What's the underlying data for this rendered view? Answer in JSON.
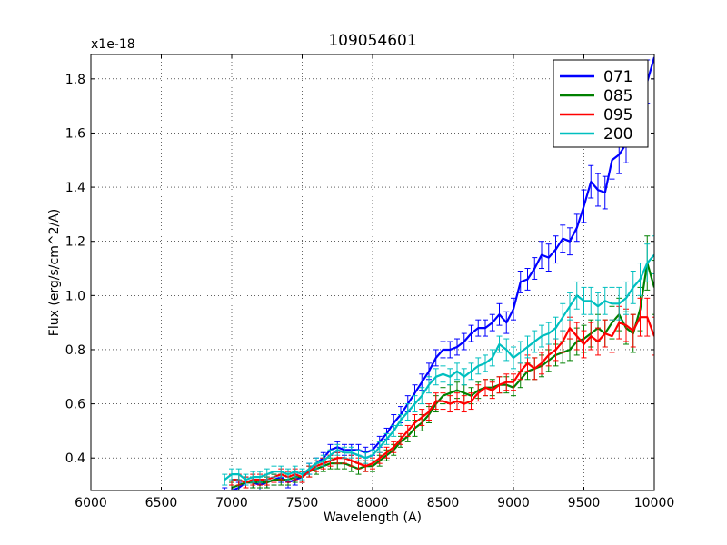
{
  "chart_data": {
    "type": "line",
    "title": "109054601",
    "xlabel": "Wavelength (A)",
    "ylabel": "Flux (erg/s/cm^2/A)",
    "y_offset_text": "x1e-18",
    "xlim": [
      6000,
      10000
    ],
    "ylim": [
      0.28,
      1.89
    ],
    "xticks": [
      6000,
      6500,
      7000,
      7500,
      8000,
      8500,
      9000,
      9500,
      10000
    ],
    "xtick_labels": [
      "6000",
      "6500",
      "7000",
      "7500",
      "8000",
      "8500",
      "9000",
      "9500",
      "10000"
    ],
    "yticks": [
      0.4,
      0.6,
      0.8,
      1.0,
      1.2,
      1.4,
      1.6,
      1.8
    ],
    "ytick_labels": [
      "0.4",
      "0.6",
      "0.8",
      "1.0",
      "1.2",
      "1.4",
      "1.6",
      "1.8"
    ],
    "grid": true,
    "legend_position": "top-right",
    "series": [
      {
        "name": "071",
        "color": "#0000ff",
        "x": [
          6950,
          7000,
          7050,
          7100,
          7150,
          7200,
          7250,
          7300,
          7350,
          7400,
          7450,
          7500,
          7550,
          7600,
          7650,
          7700,
          7750,
          7800,
          7850,
          7900,
          7950,
          8000,
          8050,
          8100,
          8150,
          8200,
          8250,
          8300,
          8350,
          8400,
          8450,
          8500,
          8550,
          8600,
          8650,
          8700,
          8750,
          8800,
          8850,
          8900,
          8950,
          9000,
          9050,
          9100,
          9150,
          9200,
          9250,
          9300,
          9350,
          9400,
          9450,
          9500,
          9550,
          9600,
          9650,
          9700,
          9750,
          9800,
          9850,
          9900,
          9950,
          10000
        ],
        "y": [
          0.27,
          0.28,
          0.29,
          0.31,
          0.31,
          0.3,
          0.31,
          0.32,
          0.33,
          0.31,
          0.32,
          0.33,
          0.36,
          0.38,
          0.4,
          0.43,
          0.44,
          0.43,
          0.43,
          0.43,
          0.42,
          0.43,
          0.46,
          0.49,
          0.53,
          0.56,
          0.6,
          0.64,
          0.68,
          0.72,
          0.77,
          0.8,
          0.8,
          0.81,
          0.83,
          0.86,
          0.88,
          0.88,
          0.9,
          0.93,
          0.9,
          0.95,
          1.05,
          1.06,
          1.1,
          1.15,
          1.14,
          1.17,
          1.21,
          1.2,
          1.25,
          1.33,
          1.42,
          1.39,
          1.38,
          1.5,
          1.52,
          1.56,
          1.62,
          1.68,
          1.79,
          1.88
        ],
        "err": [
          0.02,
          0.02,
          0.02,
          0.02,
          0.02,
          0.02,
          0.02,
          0.02,
          0.02,
          0.02,
          0.02,
          0.02,
          0.02,
          0.02,
          0.02,
          0.02,
          0.02,
          0.02,
          0.02,
          0.02,
          0.02,
          0.02,
          0.02,
          0.02,
          0.03,
          0.03,
          0.03,
          0.03,
          0.03,
          0.03,
          0.03,
          0.03,
          0.03,
          0.03,
          0.03,
          0.03,
          0.03,
          0.03,
          0.03,
          0.04,
          0.04,
          0.04,
          0.04,
          0.04,
          0.04,
          0.05,
          0.05,
          0.05,
          0.05,
          0.05,
          0.05,
          0.06,
          0.06,
          0.06,
          0.06,
          0.07,
          0.07,
          0.07,
          0.07,
          0.08,
          0.08,
          0.08
        ]
      },
      {
        "name": "085",
        "color": "#008000",
        "x": [
          7000,
          7050,
          7100,
          7150,
          7200,
          7250,
          7300,
          7350,
          7400,
          7450,
          7500,
          7550,
          7600,
          7650,
          7700,
          7750,
          7800,
          7850,
          7900,
          7950,
          8000,
          8050,
          8100,
          8150,
          8200,
          8250,
          8300,
          8350,
          8400,
          8450,
          8500,
          8550,
          8600,
          8650,
          8700,
          8750,
          8800,
          8850,
          8900,
          8950,
          9000,
          9050,
          9100,
          9150,
          9200,
          9250,
          9300,
          9350,
          9400,
          9450,
          9500,
          9550,
          9600,
          9650,
          9700,
          9750,
          9800,
          9850,
          9900,
          9950,
          10000
        ],
        "y": [
          0.29,
          0.3,
          0.31,
          0.31,
          0.31,
          0.31,
          0.32,
          0.32,
          0.32,
          0.33,
          0.33,
          0.35,
          0.36,
          0.37,
          0.38,
          0.38,
          0.38,
          0.37,
          0.36,
          0.37,
          0.37,
          0.39,
          0.41,
          0.43,
          0.46,
          0.48,
          0.51,
          0.53,
          0.56,
          0.6,
          0.63,
          0.64,
          0.65,
          0.64,
          0.63,
          0.65,
          0.66,
          0.66,
          0.67,
          0.67,
          0.66,
          0.69,
          0.72,
          0.73,
          0.74,
          0.76,
          0.78,
          0.79,
          0.8,
          0.83,
          0.84,
          0.86,
          0.88,
          0.86,
          0.9,
          0.93,
          0.88,
          0.86,
          0.95,
          1.12,
          1.03
        ],
        "err": [
          0.02,
          0.02,
          0.02,
          0.02,
          0.02,
          0.02,
          0.02,
          0.02,
          0.02,
          0.02,
          0.02,
          0.02,
          0.02,
          0.02,
          0.02,
          0.02,
          0.02,
          0.02,
          0.02,
          0.02,
          0.02,
          0.02,
          0.02,
          0.02,
          0.02,
          0.02,
          0.03,
          0.03,
          0.03,
          0.03,
          0.03,
          0.03,
          0.03,
          0.03,
          0.03,
          0.03,
          0.03,
          0.03,
          0.03,
          0.03,
          0.03,
          0.03,
          0.03,
          0.04,
          0.04,
          0.04,
          0.04,
          0.04,
          0.04,
          0.05,
          0.05,
          0.05,
          0.05,
          0.05,
          0.06,
          0.06,
          0.06,
          0.07,
          0.08,
          0.1,
          0.1
        ]
      },
      {
        "name": "095",
        "color": "#ff0000",
        "x": [
          7000,
          7050,
          7100,
          7150,
          7200,
          7250,
          7300,
          7350,
          7400,
          7450,
          7500,
          7550,
          7600,
          7650,
          7700,
          7750,
          7800,
          7850,
          7900,
          7950,
          8000,
          8050,
          8100,
          8150,
          8200,
          8250,
          8300,
          8350,
          8400,
          8450,
          8500,
          8550,
          8600,
          8650,
          8700,
          8750,
          8800,
          8850,
          8900,
          8950,
          9000,
          9050,
          9100,
          9150,
          9200,
          9250,
          9300,
          9350,
          9400,
          9450,
          9500,
          9550,
          9600,
          9650,
          9700,
          9750,
          9800,
          9850,
          9900,
          9950,
          10000
        ],
        "y": [
          0.32,
          0.32,
          0.31,
          0.32,
          0.32,
          0.32,
          0.33,
          0.34,
          0.33,
          0.34,
          0.33,
          0.35,
          0.37,
          0.38,
          0.39,
          0.4,
          0.4,
          0.39,
          0.38,
          0.37,
          0.38,
          0.4,
          0.42,
          0.44,
          0.47,
          0.5,
          0.53,
          0.55,
          0.57,
          0.61,
          0.61,
          0.6,
          0.61,
          0.6,
          0.61,
          0.64,
          0.66,
          0.65,
          0.67,
          0.68,
          0.68,
          0.72,
          0.75,
          0.73,
          0.75,
          0.78,
          0.8,
          0.83,
          0.88,
          0.85,
          0.82,
          0.85,
          0.83,
          0.86,
          0.85,
          0.9,
          0.89,
          0.87,
          0.92,
          0.92,
          0.85
        ],
        "err": [
          0.02,
          0.02,
          0.02,
          0.02,
          0.02,
          0.02,
          0.02,
          0.02,
          0.02,
          0.02,
          0.02,
          0.02,
          0.02,
          0.02,
          0.02,
          0.02,
          0.02,
          0.02,
          0.02,
          0.02,
          0.02,
          0.02,
          0.02,
          0.02,
          0.02,
          0.02,
          0.03,
          0.03,
          0.03,
          0.03,
          0.03,
          0.03,
          0.03,
          0.03,
          0.03,
          0.03,
          0.03,
          0.03,
          0.03,
          0.03,
          0.03,
          0.03,
          0.03,
          0.04,
          0.04,
          0.04,
          0.04,
          0.04,
          0.04,
          0.05,
          0.05,
          0.05,
          0.05,
          0.05,
          0.06,
          0.06,
          0.06,
          0.06,
          0.07,
          0.07,
          0.07
        ]
      },
      {
        "name": "200",
        "color": "#00bfbf",
        "x": [
          6950,
          7000,
          7050,
          7100,
          7150,
          7200,
          7250,
          7300,
          7350,
          7400,
          7450,
          7500,
          7550,
          7600,
          7650,
          7700,
          7750,
          7800,
          7850,
          7900,
          7950,
          8000,
          8050,
          8100,
          8150,
          8200,
          8250,
          8300,
          8350,
          8400,
          8450,
          8500,
          8550,
          8600,
          8650,
          8700,
          8750,
          8800,
          8850,
          8900,
          8950,
          9000,
          9050,
          9100,
          9150,
          9200,
          9250,
          9300,
          9350,
          9400,
          9450,
          9500,
          9550,
          9600,
          9650,
          9700,
          9750,
          9800,
          9850,
          9900,
          9950,
          10000
        ],
        "y": [
          0.32,
          0.34,
          0.34,
          0.32,
          0.33,
          0.33,
          0.34,
          0.35,
          0.35,
          0.34,
          0.35,
          0.34,
          0.36,
          0.38,
          0.39,
          0.41,
          0.43,
          0.42,
          0.42,
          0.41,
          0.4,
          0.41,
          0.44,
          0.47,
          0.5,
          0.54,
          0.57,
          0.6,
          0.63,
          0.67,
          0.7,
          0.71,
          0.7,
          0.72,
          0.7,
          0.72,
          0.74,
          0.75,
          0.77,
          0.82,
          0.8,
          0.77,
          0.79,
          0.81,
          0.83,
          0.85,
          0.86,
          0.88,
          0.92,
          0.96,
          1.0,
          0.98,
          0.98,
          0.96,
          0.98,
          0.97,
          0.97,
          0.99,
          1.03,
          1.06,
          1.12,
          1.15
        ],
        "err": [
          0.02,
          0.02,
          0.02,
          0.02,
          0.02,
          0.02,
          0.02,
          0.02,
          0.02,
          0.02,
          0.02,
          0.02,
          0.02,
          0.02,
          0.02,
          0.02,
          0.02,
          0.02,
          0.02,
          0.02,
          0.02,
          0.02,
          0.02,
          0.02,
          0.02,
          0.02,
          0.03,
          0.03,
          0.03,
          0.03,
          0.03,
          0.03,
          0.03,
          0.03,
          0.03,
          0.03,
          0.03,
          0.03,
          0.03,
          0.03,
          0.04,
          0.04,
          0.04,
          0.04,
          0.04,
          0.04,
          0.04,
          0.04,
          0.05,
          0.05,
          0.05,
          0.05,
          0.05,
          0.05,
          0.05,
          0.06,
          0.06,
          0.06,
          0.06,
          0.06,
          0.07,
          0.07
        ]
      }
    ]
  }
}
